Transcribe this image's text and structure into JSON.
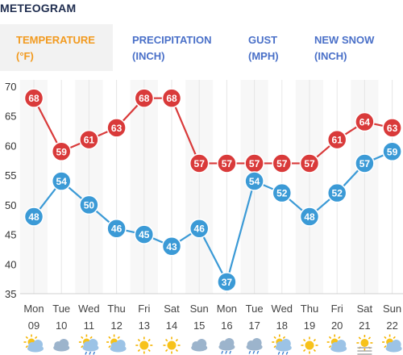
{
  "title": "METEOGRAM",
  "tabs": [
    {
      "line1": "TEMPERATURE",
      "line2": "(°F)",
      "active": true
    },
    {
      "line1": "PRECIPITATION",
      "line2": "(INCH)",
      "active": false
    },
    {
      "line1": "GUST",
      "line2": "(MPH)",
      "active": false
    },
    {
      "line1": "NEW SNOW",
      "line2": "(INCH)",
      "active": false
    }
  ],
  "chart_data": {
    "type": "line",
    "days": [
      "Mon",
      "Tue",
      "Wed",
      "Thu",
      "Fri",
      "Sat",
      "Sun",
      "Mon",
      "Tue",
      "Wed",
      "Thu",
      "Fri",
      "Sat",
      "Sun"
    ],
    "dates": [
      "09",
      "10",
      "11",
      "12",
      "13",
      "14",
      "15",
      "16",
      "17",
      "18",
      "19",
      "20",
      "21",
      "22"
    ],
    "yticks": [
      35,
      40,
      45,
      50,
      55,
      60,
      65,
      70
    ],
    "ylim": [
      35,
      70
    ],
    "grid": true,
    "series": [
      {
        "color": "#d93a3a",
        "values": [
          68,
          59,
          61,
          63,
          68,
          68,
          57,
          57,
          57,
          57,
          57,
          61,
          64,
          63
        ]
      },
      {
        "color": "#3b9ad6",
        "values": [
          48,
          54,
          50,
          46,
          45,
          43,
          46,
          37,
          54,
          52,
          48,
          52,
          57,
          59
        ]
      }
    ],
    "weather_icons": [
      "partly-cloudy-icon",
      "cloudy-icon",
      "partly-cloudy-rain-icon",
      "partly-cloudy-icon",
      "sunny-icon",
      "sunny-icon",
      "cloudy-icon",
      "cloudy-rain-icon",
      "cloudy-rain-icon",
      "partly-cloudy-rain-icon",
      "sunny-icon",
      "partly-cloudy-icon",
      "sunny-fog-icon",
      "partly-cloudy-icon"
    ]
  }
}
